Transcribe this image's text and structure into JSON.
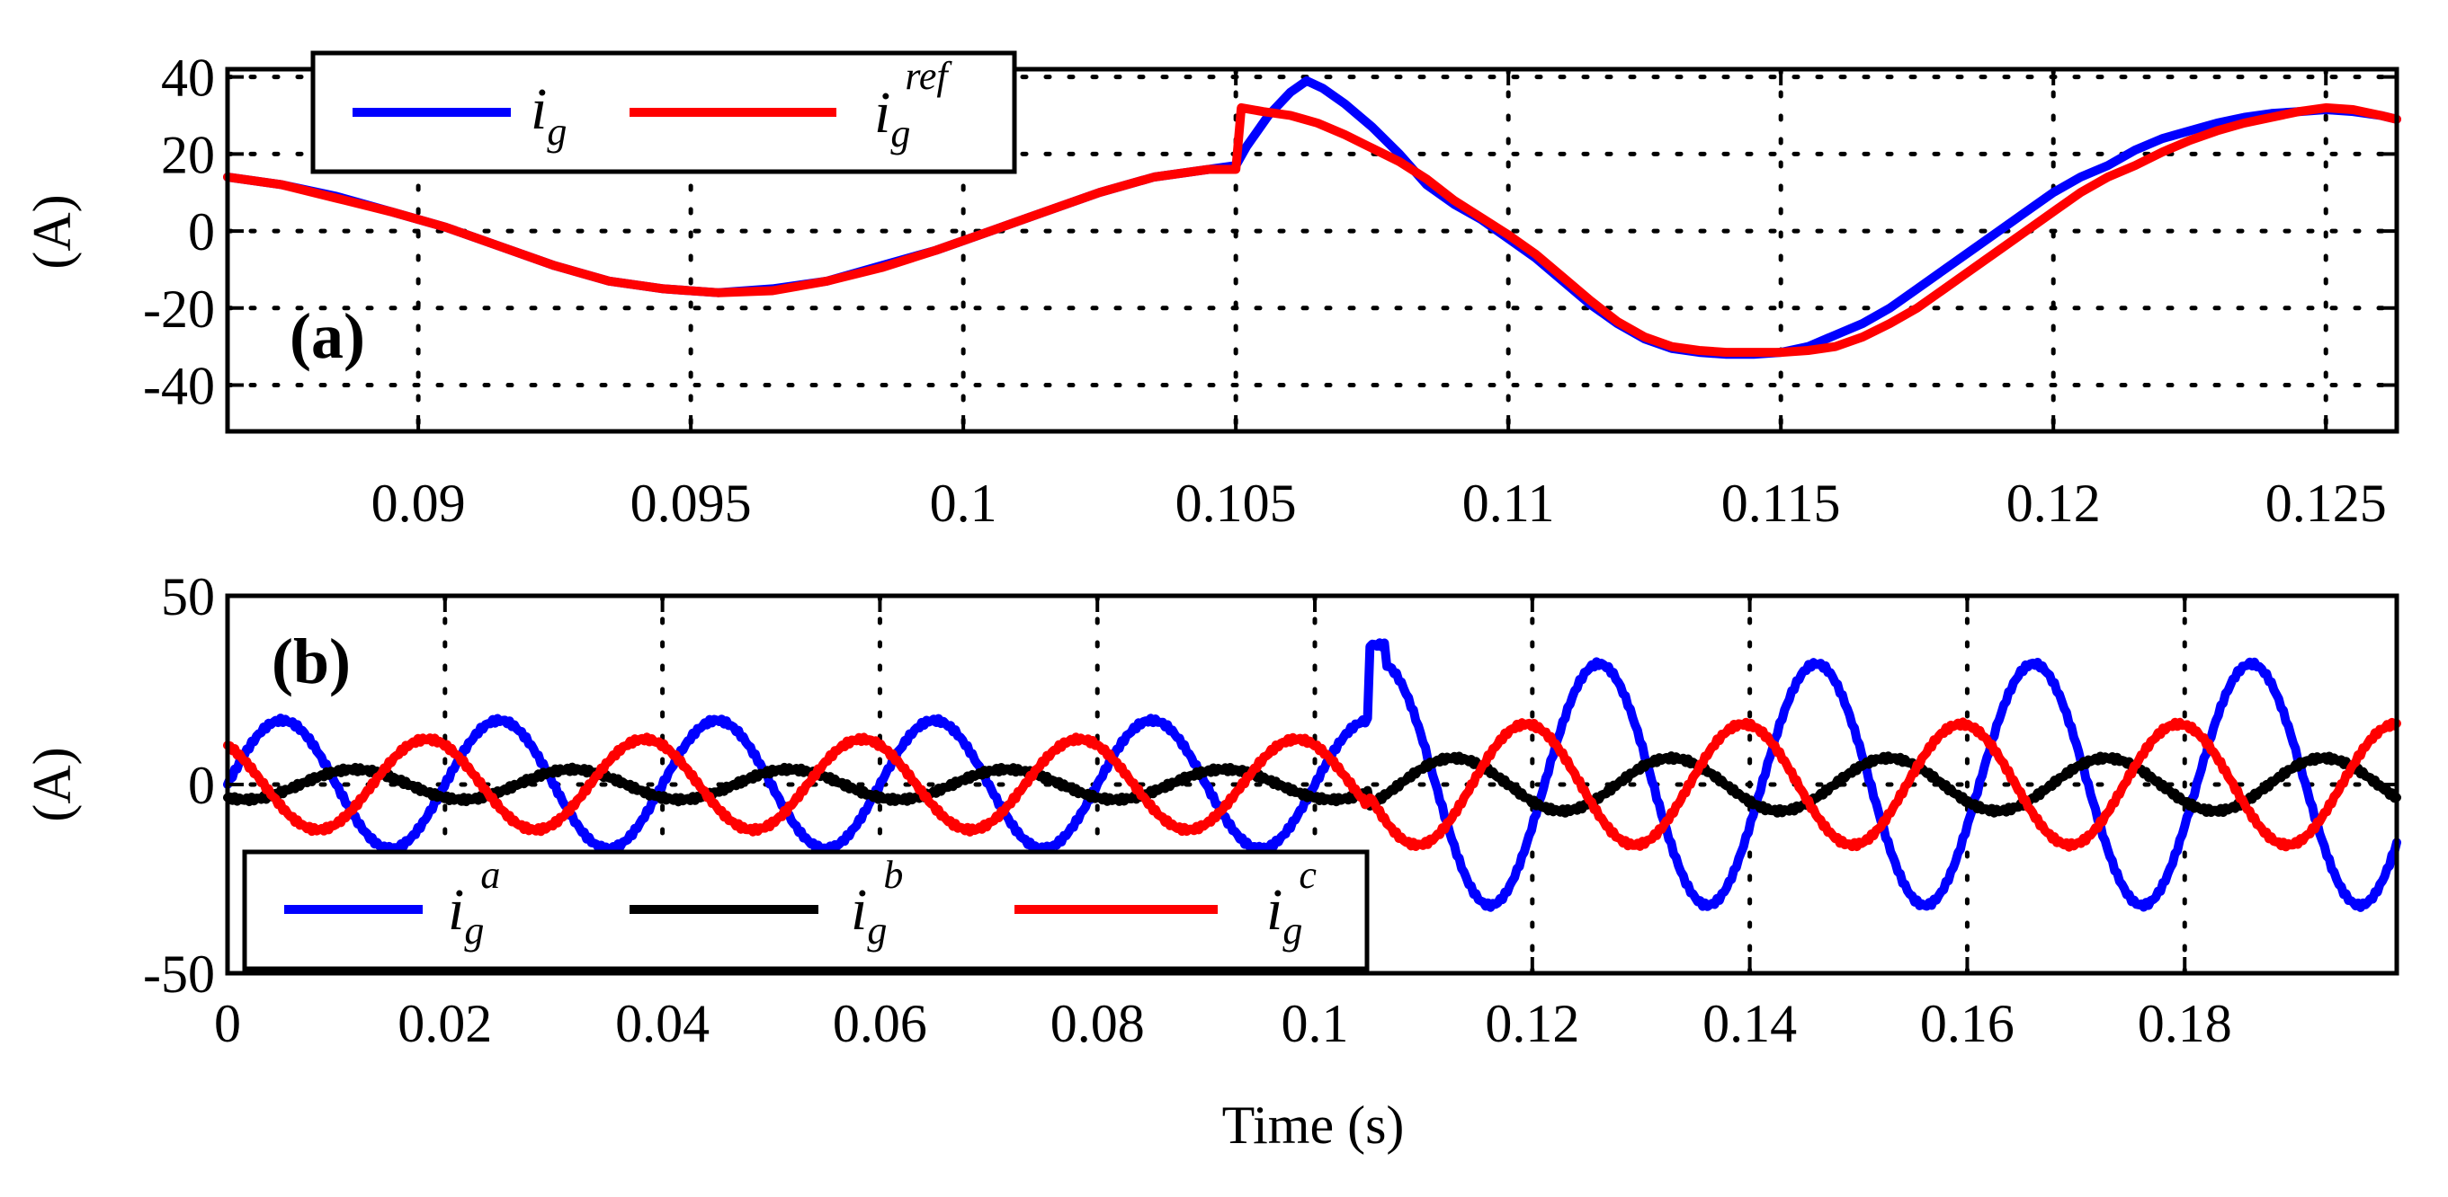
{
  "chart_data": [
    {
      "type": "line",
      "panel_label": "(a)",
      "xlabel": "",
      "ylabel": "(A)",
      "xlim": [
        0.0865,
        0.1263
      ],
      "ylim": [
        -52,
        42
      ],
      "xticks": [
        0.09,
        0.095,
        0.1,
        0.105,
        0.11,
        0.115,
        0.12,
        0.125
      ],
      "xtick_labels": [
        "0.09",
        "0.095",
        "0.1",
        "0.105",
        "0.11",
        "0.115",
        "0.12",
        "0.125"
      ],
      "yticks": [
        40,
        20,
        0,
        -20,
        -40
      ],
      "ytick_labels": [
        "40",
        "20",
        "0",
        "-20",
        "-40"
      ],
      "grid": true,
      "legend_placement": "top-left",
      "series": [
        {
          "name": "i_g",
          "legend_symbol": "i",
          "legend_sub": "g",
          "legend_sup": "",
          "color": "#0000ff",
          "x": [
            0.0865,
            0.0875,
            0.0885,
            0.0895,
            0.0905,
            0.0915,
            0.0925,
            0.0935,
            0.0945,
            0.0955,
            0.0965,
            0.0975,
            0.0985,
            0.0995,
            0.1005,
            0.1015,
            0.1025,
            0.1035,
            0.1045,
            0.105,
            0.1052,
            0.1056,
            0.106,
            0.1063,
            0.1066,
            0.107,
            0.1075,
            0.108,
            0.1085,
            0.109,
            0.1095,
            0.11,
            0.1105,
            0.111,
            0.1115,
            0.112,
            0.1125,
            0.113,
            0.1135,
            0.114,
            0.1145,
            0.115,
            0.1155,
            0.116,
            0.1165,
            0.117,
            0.1175,
            0.118,
            0.1185,
            0.119,
            0.1195,
            0.12,
            0.1205,
            0.121,
            0.1215,
            0.122,
            0.1225,
            0.123,
            0.1235,
            0.124,
            0.1245,
            0.125,
            0.1255,
            0.126,
            0.1263
          ],
          "y": [
            14,
            12,
            9,
            5,
            1,
            -4,
            -9,
            -13,
            -15,
            -16,
            -15,
            -13,
            -9,
            -5,
            0,
            5,
            10,
            14,
            16,
            17,
            22,
            30,
            36,
            39,
            37,
            33,
            27,
            20,
            12,
            7,
            3,
            -2,
            -7,
            -13,
            -19,
            -24,
            -28,
            -30.5,
            -31.5,
            -32,
            -32,
            -31.5,
            -30,
            -27,
            -24,
            -20,
            -15,
            -10,
            -5,
            0,
            5,
            10,
            14,
            17,
            21,
            24,
            26,
            28,
            29.5,
            30.5,
            31,
            31.5,
            31,
            30,
            29
          ]
        },
        {
          "name": "i_g^ref",
          "legend_symbol": "i",
          "legend_sub": "g",
          "legend_sup": "ref",
          "color": "#ff0000",
          "x": [
            0.0865,
            0.0875,
            0.0885,
            0.0895,
            0.0905,
            0.0915,
            0.0925,
            0.0935,
            0.0945,
            0.0955,
            0.0965,
            0.0975,
            0.0985,
            0.0995,
            0.1005,
            0.1015,
            0.1025,
            0.1035,
            0.1045,
            0.105,
            0.1051,
            0.1055,
            0.106,
            0.1065,
            0.107,
            0.1075,
            0.108,
            0.1085,
            0.109,
            0.1095,
            0.11,
            0.1105,
            0.111,
            0.1115,
            0.112,
            0.1125,
            0.113,
            0.1135,
            0.114,
            0.1145,
            0.115,
            0.1155,
            0.116,
            0.1165,
            0.117,
            0.1175,
            0.118,
            0.1185,
            0.119,
            0.1195,
            0.12,
            0.1205,
            0.121,
            0.1215,
            0.122,
            0.1225,
            0.123,
            0.1235,
            0.124,
            0.1245,
            0.125,
            0.1255,
            0.126,
            0.1263
          ],
          "y": [
            14,
            12,
            8.5,
            5,
            1,
            -4,
            -9,
            -13,
            -15,
            -16,
            -15.5,
            -13,
            -9.5,
            -5,
            0,
            5,
            10,
            14,
            16,
            16,
            32,
            31,
            30,
            28,
            25,
            21.5,
            18,
            13.5,
            8,
            3.5,
            -1,
            -6,
            -12,
            -18,
            -23.5,
            -27.5,
            -30,
            -31,
            -31.5,
            -31.5,
            -31.5,
            -31,
            -30,
            -27.5,
            -24,
            -20,
            -15,
            -10,
            -5,
            0,
            5,
            10,
            14,
            17,
            20.5,
            23.5,
            26,
            28,
            29.5,
            31,
            32,
            31.5,
            30,
            29
          ]
        }
      ]
    },
    {
      "type": "line",
      "panel_label": "(b)",
      "xlabel": "Time (s)",
      "ylabel": "(A)",
      "xlim": [
        0,
        0.1995
      ],
      "ylim": [
        -50,
        50
      ],
      "xticks": [
        0,
        0.02,
        0.04,
        0.06,
        0.08,
        0.1,
        0.12,
        0.14,
        0.16,
        0.18
      ],
      "xtick_labels": [
        "0",
        "0.02",
        "0.04",
        "0.06",
        "0.08",
        "0.1",
        "0.12",
        "0.14",
        "0.16",
        "0.18"
      ],
      "yticks": [
        50,
        0,
        -50
      ],
      "ytick_labels": [
        "50",
        "0",
        "-50"
      ],
      "grid": true,
      "legend_placement": "bottom-left",
      "waveforms": {
        "frequency_hz": 50,
        "step_time": 0.105,
        "before_step": {
          "a": {
            "amplitude": 17,
            "phase_deg": 0
          },
          "b": {
            "amplitude": 4,
            "phase_deg": -120
          },
          "c": {
            "amplitude": 12,
            "phase_deg": 120
          }
        },
        "after_step": {
          "a": {
            "amplitude": 32,
            "phase_deg": -20
          },
          "b": {
            "amplitude": 7,
            "phase_deg": -140
          },
          "c": {
            "amplitude": 16,
            "phase_deg": 100
          }
        }
      },
      "series": [
        {
          "name": "i_g^a",
          "legend_symbol": "i",
          "legend_sub": "g",
          "legend_sup": "a",
          "color": "#0000ff"
        },
        {
          "name": "i_g^b",
          "legend_symbol": "i",
          "legend_sub": "g",
          "legend_sup": "b",
          "color": "#000000"
        },
        {
          "name": "i_g^c",
          "legend_symbol": "i",
          "legend_sub": "g",
          "legend_sup": "c",
          "color": "#ff0000"
        }
      ]
    }
  ]
}
